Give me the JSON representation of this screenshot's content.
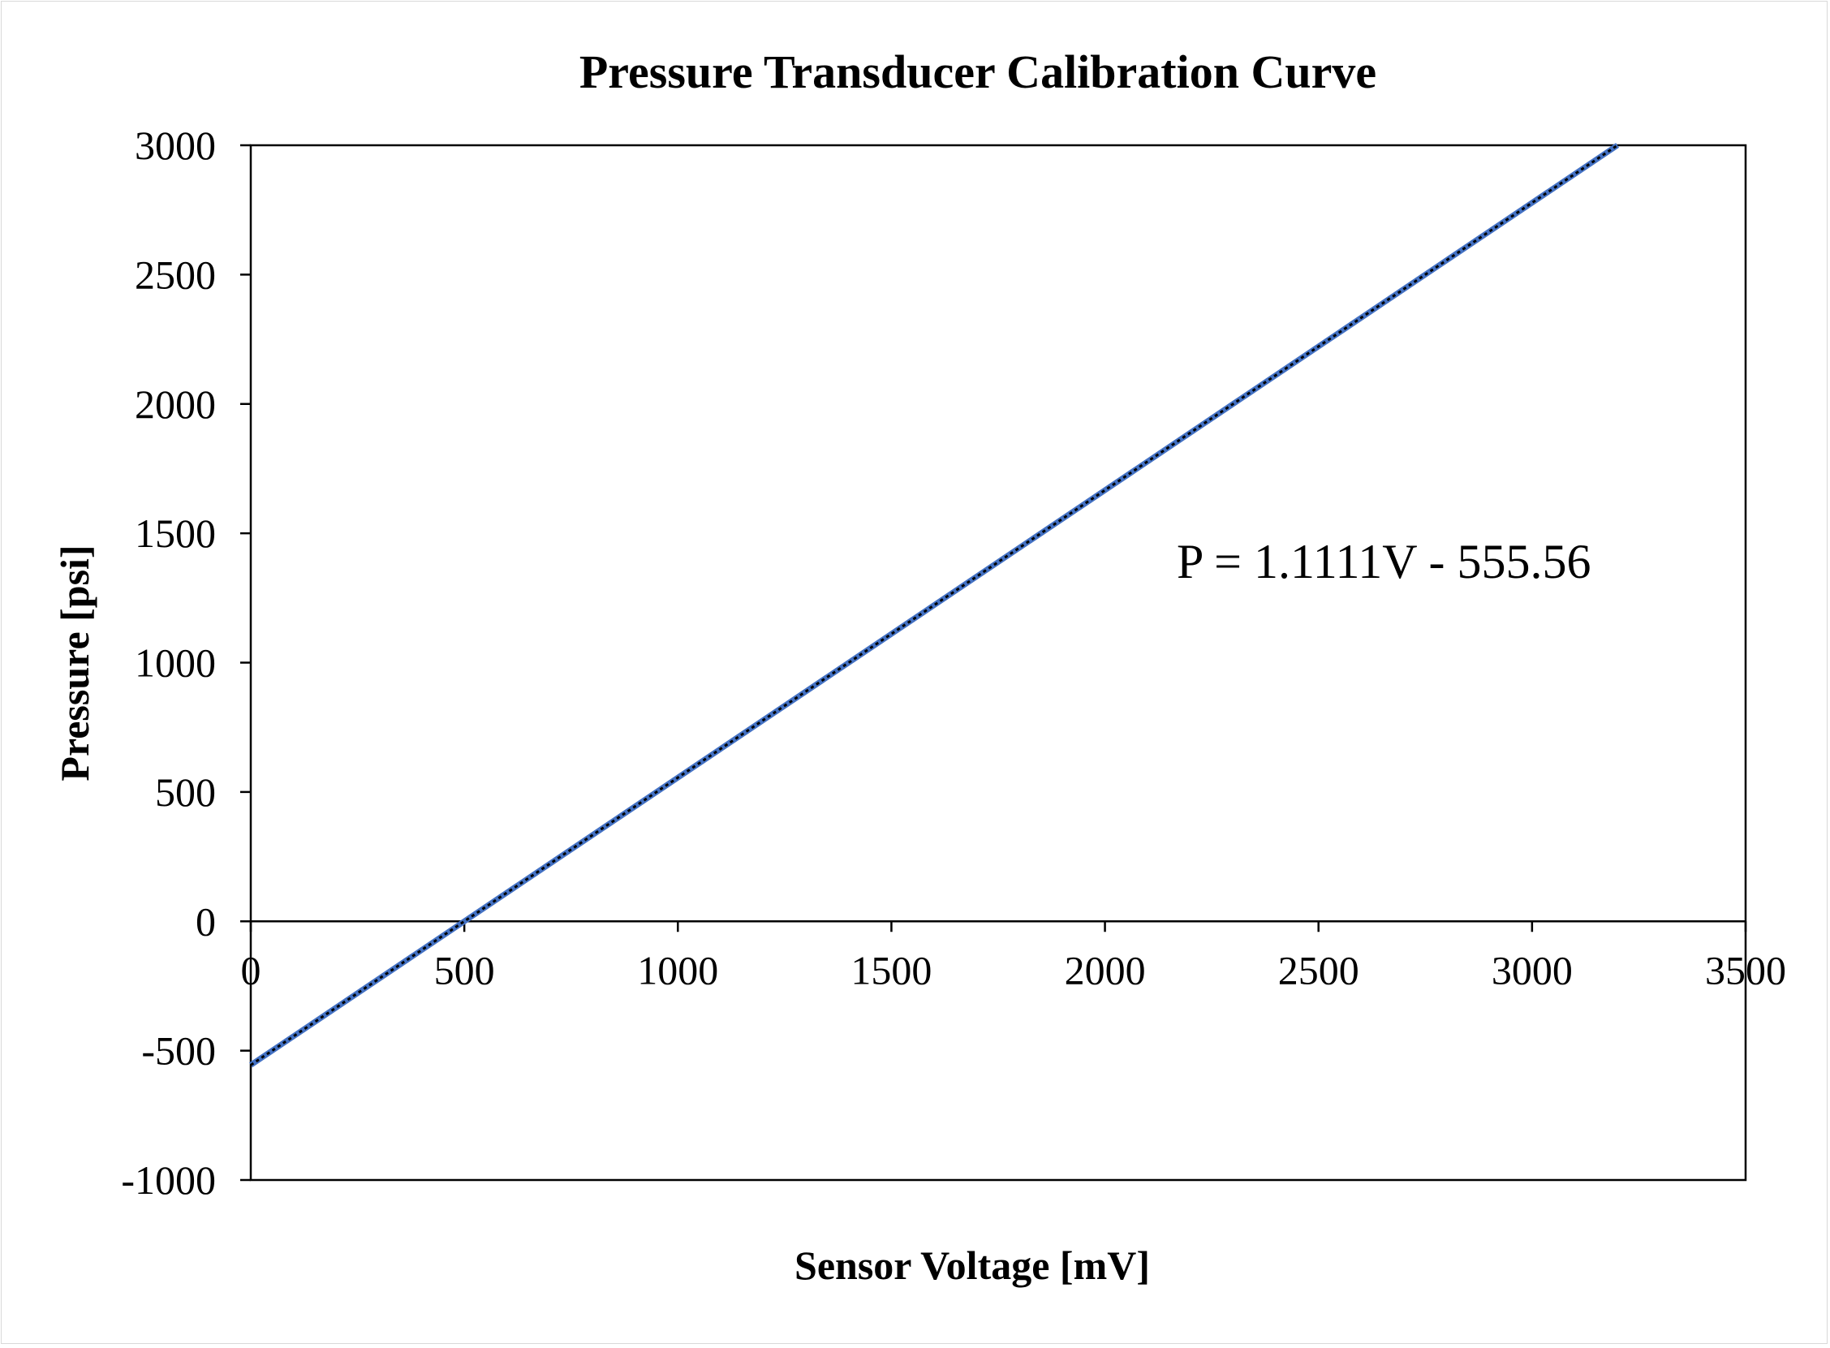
{
  "chart_data": {
    "type": "line",
    "title": "Pressure Transducer Calibration Curve",
    "xlabel": "Sensor Voltage [mV]",
    "ylabel": "Pressure [psi]",
    "xlim": [
      0,
      3500
    ],
    "ylim": [
      -1000,
      3000
    ],
    "x_ticks": [
      0,
      500,
      1000,
      1500,
      2000,
      2500,
      3000,
      3500
    ],
    "y_ticks": [
      -1000,
      -500,
      0,
      500,
      1000,
      1500,
      2000,
      2500,
      3000
    ],
    "x_tick_labels": [
      "0",
      "500",
      "1000",
      "1500",
      "2000",
      "2500",
      "3000",
      "3500"
    ],
    "y_tick_labels": [
      "-1000",
      "-500",
      "0",
      "500",
      "1000",
      "1500",
      "2000",
      "2500",
      "3000"
    ],
    "grid": false,
    "legend": "none",
    "series": [
      {
        "x": [
          0,
          3200
        ],
        "y": [
          -555.56,
          3000
        ],
        "color": "#4472c4",
        "overlay_color": "#000000",
        "style": "solid with dotted overlay"
      }
    ],
    "annotations": [
      {
        "text": "P = 1.1111V - 555.56"
      }
    ]
  }
}
